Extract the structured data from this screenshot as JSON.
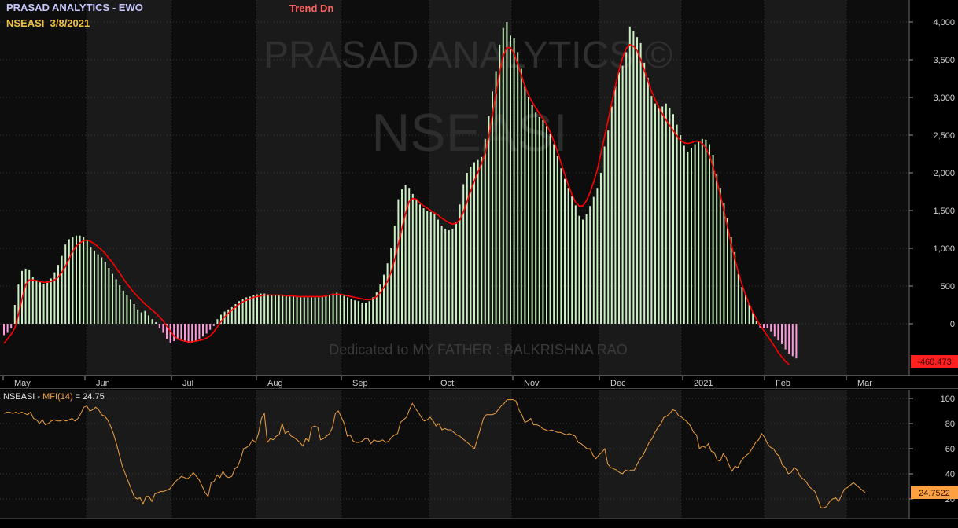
{
  "header": {
    "title": "PRASAD ANALYTICS - EWO",
    "symbol_date": "NSEASI  3/8/2021",
    "trend": "Trend Dn"
  },
  "watermark": {
    "brand": "PRASAD ANALYTICS ©",
    "symbol": "NSEASI",
    "dedication": "Dedicated to MY FATHER : BALKRISHNA RAO"
  },
  "months": [
    "May",
    "Jun",
    "Jul",
    "Aug",
    "Sep",
    "Oct",
    "Nov",
    "Dec",
    "2021",
    "Feb",
    "Mar"
  ],
  "colors": {
    "background": "#000000",
    "panel_bg": "#141414",
    "band_dark": "#0d0d0d",
    "band_light": "#1a1a1a",
    "positive_bar": "#c8f0c0",
    "negative_bar": "#ff99dd",
    "signal_line": "#ff0000",
    "mfi_line": "#f0a040",
    "title_color": "#c8c8ff",
    "symbol_color": "#f0c040",
    "trend_color": "#ff6060",
    "tag_red": "#ff2020",
    "tag_orange": "#ffa040"
  },
  "mfi_panel": {
    "prefix": "NSEASI - ",
    "indicator": "MFI(14)",
    "value_text": " = 24.75",
    "last_value_tag": "24.7522"
  },
  "ewo_panel": {
    "last_value_tag": "-460.473"
  },
  "chart_data": [
    {
      "type": "bar",
      "title": "PRASAD ANALYTICS - EWO",
      "ylim": [
        -550,
        4100
      ],
      "yticks": [
        0,
        500,
        1000,
        1500,
        2000,
        2500,
        3000,
        3500,
        4000
      ],
      "ytick_labels": [
        "0",
        "500",
        "1,000",
        "1,500",
        "2,000",
        "2,500",
        "3,000",
        "3,500",
        "4,000"
      ],
      "series": [
        {
          "kind": "histogram",
          "values": [
            -150,
            -120,
            -60,
            250,
            520,
            700,
            730,
            720,
            620,
            580,
            550,
            530,
            560,
            600,
            680,
            780,
            900,
            1050,
            1120,
            1150,
            1170,
            1170,
            1150,
            1100,
            1020,
            970,
            920,
            880,
            820,
            740,
            660,
            590,
            510,
            440,
            380,
            320,
            260,
            190,
            150,
            170,
            110,
            60,
            20,
            -60,
            -120,
            -200,
            -250,
            -230,
            -210,
            -220,
            -240,
            -260,
            -250,
            -230,
            -200,
            -170,
            -130,
            -80,
            -30,
            60,
            120,
            160,
            190,
            220,
            260,
            300,
            330,
            350,
            360,
            380,
            390,
            400,
            400,
            390,
            380,
            380,
            380,
            370,
            370,
            360,
            360,
            360,
            350,
            350,
            350,
            350,
            350,
            350,
            360,
            370,
            380,
            400,
            410,
            390,
            370,
            350,
            330,
            310,
            300,
            280,
            280,
            300,
            350,
            420,
            520,
            650,
            800,
            1000,
            1300,
            1650,
            1780,
            1840,
            1800,
            1720,
            1640,
            1580,
            1530,
            1500,
            1480,
            1460,
            1380,
            1300,
            1260,
            1240,
            1260,
            1350,
            1580,
            1850,
            2000,
            2080,
            2140,
            2170,
            2210,
            2450,
            2750,
            3080,
            3350,
            3700,
            3920,
            4000,
            3820,
            3780,
            3600,
            3380,
            3160,
            3000,
            2900,
            2800,
            2740,
            2700,
            2620,
            2520,
            2380,
            2220,
            2060,
            1920,
            1800,
            1690,
            1570,
            1430,
            1380,
            1450,
            1560,
            1680,
            1800,
            2000,
            2350,
            2560,
            2880,
            3150,
            3330,
            3420,
            3600,
            3940,
            3880,
            3800,
            3720,
            3460,
            3260,
            3020,
            2920,
            2860,
            2880,
            2920,
            2860,
            2780,
            2640,
            2500,
            2360,
            2280,
            2330,
            2380,
            2420,
            2450,
            2440,
            2380,
            2240,
            1980,
            1800,
            1600,
            1400,
            1150,
            950,
            660,
            490,
            380,
            280,
            150,
            30,
            -50,
            -60,
            -60,
            -100,
            -170,
            -220,
            -270,
            -340,
            -400,
            -430,
            -460
          ]
        },
        {
          "kind": "line",
          "name": "signal",
          "values": [
            -260,
            -200,
            -140,
            -60,
            120,
            330,
            520,
            580,
            580,
            570,
            560,
            550,
            550,
            560,
            580,
            620,
            680,
            760,
            860,
            960,
            1030,
            1070,
            1100,
            1110,
            1090,
            1060,
            1020,
            980,
            930,
            870,
            810,
            740,
            670,
            600,
            530,
            470,
            410,
            360,
            310,
            260,
            220,
            180,
            140,
            90,
            40,
            -30,
            -100,
            -160,
            -200,
            -220,
            -230,
            -240,
            -240,
            -230,
            -220,
            -210,
            -190,
            -160,
            -110,
            -40,
            30,
            90,
            140,
            180,
            220,
            260,
            290,
            310,
            330,
            350,
            360,
            370,
            380,
            380,
            380,
            380,
            380,
            380,
            370,
            370,
            370,
            360,
            360,
            360,
            360,
            360,
            360,
            360,
            360,
            370,
            380,
            390,
            390,
            390,
            380,
            370,
            360,
            350,
            340,
            330,
            320,
            320,
            330,
            360,
            410,
            480,
            560,
            680,
            850,
            1050,
            1260,
            1460,
            1620,
            1660,
            1650,
            1600,
            1560,
            1530,
            1500,
            1470,
            1440,
            1400,
            1370,
            1340,
            1320,
            1330,
            1380,
            1480,
            1620,
            1760,
            1890,
            2010,
            2120,
            2260,
            2480,
            2760,
            3060,
            3330,
            3550,
            3660,
            3660,
            3580,
            3440,
            3300,
            3150,
            3030,
            2940,
            2860,
            2790,
            2720,
            2640,
            2540,
            2420,
            2280,
            2130,
            1980,
            1840,
            1710,
            1610,
            1560,
            1560,
            1630,
            1740,
            1880,
            2040,
            2260,
            2480,
            2700,
            2930,
            3150,
            3360,
            3530,
            3650,
            3700,
            3680,
            3620,
            3500,
            3360,
            3220,
            3080,
            2970,
            2870,
            2780,
            2700,
            2630,
            2560,
            2490,
            2430,
            2400,
            2390,
            2400,
            2420,
            2420,
            2390,
            2330,
            2230,
            2080,
            1900,
            1710,
            1500,
            1280,
            1060,
            860,
            680,
            520,
            380,
            260,
            150,
            60,
            -20,
            -90,
            -160,
            -230,
            -300,
            -380,
            -440,
            -500,
            -540
          ]
        }
      ]
    },
    {
      "type": "line",
      "title": "NSEASI - MFI(14) = 24.75",
      "ylim": [
        12,
        106
      ],
      "yticks": [
        20,
        40,
        60,
        80,
        100
      ],
      "ytick_labels": [
        "20",
        "40",
        "60",
        "80",
        "100"
      ],
      "series": [
        {
          "name": "MFI(14)",
          "values": [
            88,
            89,
            89,
            88,
            89,
            88,
            89,
            88,
            87,
            89,
            84,
            83,
            80,
            83,
            79,
            80,
            82,
            83,
            82,
            82,
            83,
            82,
            83,
            84,
            82,
            84,
            88,
            93,
            94,
            90,
            91,
            93,
            91,
            87,
            86,
            83,
            78,
            72,
            64,
            55,
            46,
            40,
            34,
            28,
            22,
            20,
            21,
            16,
            22,
            22,
            18,
            24,
            25,
            26,
            26,
            27,
            28,
            31,
            34,
            36,
            38,
            37,
            36,
            38,
            41,
            38,
            35,
            30,
            25,
            22,
            33,
            34,
            39,
            37,
            42,
            38,
            37,
            38,
            44,
            46,
            52,
            60,
            61,
            63,
            67,
            65,
            72,
            84,
            88,
            65,
            68,
            67,
            70,
            71,
            80,
            72,
            74,
            70,
            69,
            67,
            65,
            62,
            68,
            66,
            77,
            78,
            77,
            67,
            68,
            70,
            72,
            77,
            88,
            90,
            85,
            80,
            70,
            71,
            66,
            65,
            65,
            66,
            68,
            68,
            64,
            67,
            66,
            66,
            67,
            65,
            66,
            69,
            71,
            72,
            81,
            83,
            85,
            91,
            96,
            92,
            89,
            85,
            82,
            83,
            85,
            82,
            78,
            80,
            75,
            76,
            75,
            75,
            73,
            71,
            70,
            68,
            66,
            64,
            62,
            60,
            68,
            76,
            84,
            87,
            87,
            87,
            88,
            91,
            94,
            96,
            99,
            99,
            99,
            98,
            91,
            87,
            81,
            82,
            84,
            79,
            79,
            78,
            76,
            75,
            74,
            75,
            74,
            73,
            73,
            72,
            71,
            72,
            71,
            70,
            65,
            64,
            62,
            60,
            60,
            55,
            52,
            55,
            57,
            60,
            48,
            45,
            44,
            43,
            41,
            40,
            43,
            42,
            43,
            43,
            48,
            52,
            55,
            60,
            65,
            68,
            73,
            77,
            80,
            85,
            86,
            88,
            91,
            90,
            86,
            85,
            83,
            81,
            78,
            73,
            71,
            60,
            62,
            61,
            64,
            58,
            57,
            51,
            50,
            56,
            53,
            47,
            42,
            46,
            45,
            50,
            53,
            55,
            57,
            61,
            65,
            67,
            72,
            69,
            64,
            61,
            60,
            56,
            54,
            47,
            45,
            40,
            41,
            45,
            43,
            38,
            36,
            34,
            30,
            28,
            26,
            20,
            13,
            13,
            14,
            18,
            20,
            21,
            18,
            23,
            28,
            29,
            31,
            33,
            31,
            29,
            27,
            25
          ]
        }
      ]
    }
  ]
}
